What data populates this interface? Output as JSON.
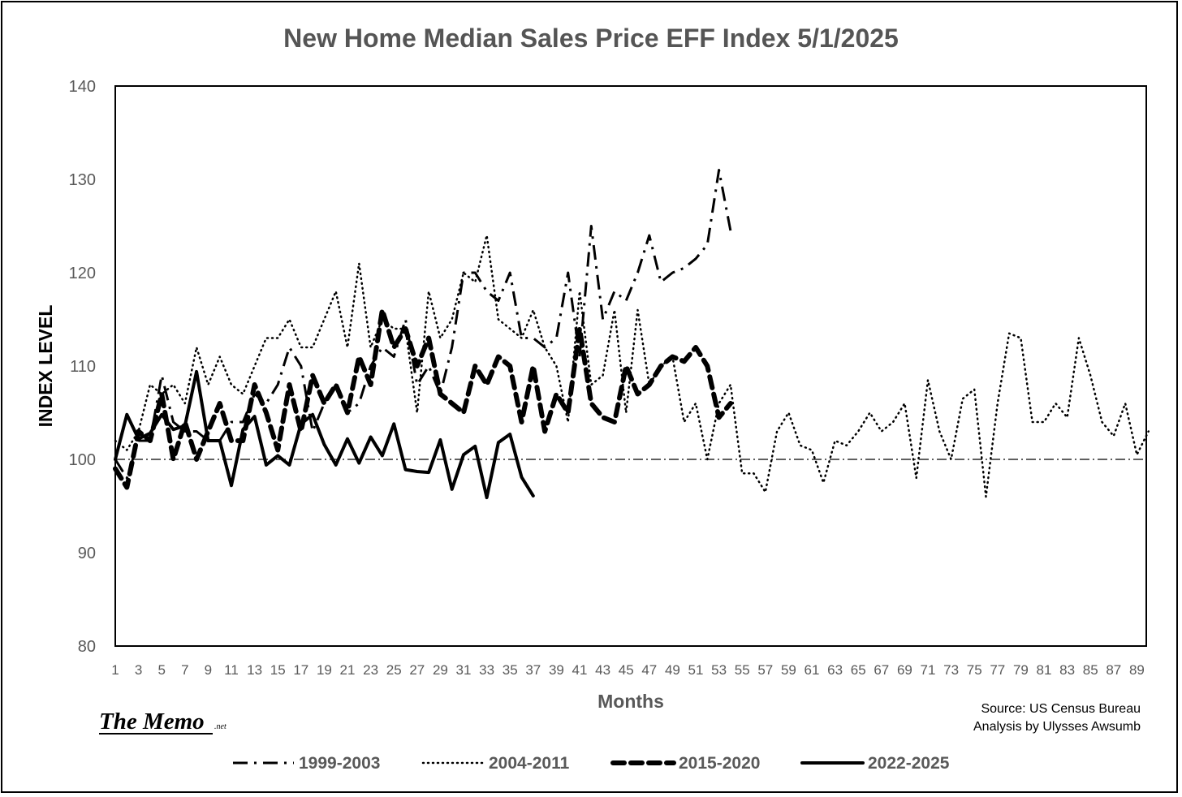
{
  "chart_data": {
    "type": "line",
    "title": "New Home Median Sales Price EFF Index 5/1/2025",
    "xlabel": "Months",
    "ylabel": "INDEX LEVEL",
    "xlim": [
      1,
      90
    ],
    "ylim": [
      80,
      140
    ],
    "y_ticks": [
      80,
      90,
      100,
      110,
      120,
      130,
      140
    ],
    "x_tick_labels": [
      "1",
      "3",
      "5",
      "7",
      "9",
      "11",
      "13",
      "15",
      "17",
      "19",
      "21",
      "23",
      "25",
      "27",
      "29",
      "31",
      "33",
      "35",
      "37",
      "39",
      "41",
      "43",
      "45",
      "47",
      "49",
      "51",
      "53",
      "55",
      "57",
      "59",
      "61",
      "63",
      "65",
      "67",
      "69",
      "71",
      "73",
      "75",
      "77",
      "79",
      "81",
      "83",
      "85",
      "87",
      "89"
    ],
    "grid": false,
    "legend_position": "bottom",
    "reference_line": {
      "y": 100,
      "style": "dash-dot",
      "color": "#000000"
    },
    "series": [
      {
        "name": "1999-2003",
        "style": "dash-dot",
        "color": "#000000",
        "values": [
          100,
          98,
          102,
          102,
          109,
          104,
          103,
          103,
          102,
          102,
          104,
          104,
          107,
          106,
          108,
          112,
          110,
          103,
          106,
          108,
          105,
          106,
          110,
          112,
          111,
          115,
          108,
          110,
          107,
          112,
          120,
          120,
          118,
          117,
          120,
          113,
          113,
          112,
          113,
          120,
          111,
          125,
          115,
          118,
          117,
          120,
          124,
          119,
          120,
          120.5,
          121.5,
          123,
          131,
          124.5
        ]
      },
      {
        "name": "2004-2011",
        "style": "dotted",
        "color": "#000000",
        "values": [
          102,
          101,
          103,
          108,
          107,
          108,
          106,
          112,
          108,
          111,
          108,
          107,
          110,
          113,
          113,
          115,
          112,
          112,
          115,
          118,
          112,
          121,
          112,
          115,
          114,
          114,
          105,
          118,
          113,
          115,
          120,
          119,
          124,
          115,
          114,
          113,
          116,
          112,
          110,
          104,
          118,
          108,
          109,
          116,
          105,
          116,
          108,
          110,
          111,
          104,
          106,
          100,
          106,
          108,
          98.5,
          98.5,
          96.5,
          103,
          105,
          101.5,
          101,
          97.5,
          102,
          101.5,
          103,
          105,
          103,
          104,
          106,
          98,
          108.5,
          103,
          100,
          106.5,
          107.5,
          96,
          106,
          113.5,
          113,
          104,
          104,
          106,
          104.5,
          113,
          109,
          104,
          102.5,
          106,
          100.5,
          103
        ]
      },
      {
        "name": "2015-2020",
        "style": "long-dash",
        "color": "#000000",
        "values": [
          99,
          97,
          103,
          102,
          107,
          100,
          104,
          100,
          103,
          106,
          102,
          102,
          108,
          105,
          101,
          108,
          103,
          109,
          106,
          108,
          105,
          111,
          108,
          116,
          112,
          114,
          110,
          113,
          107,
          106,
          105,
          110,
          108,
          111,
          110,
          104,
          110,
          103,
          107,
          105,
          114,
          106,
          104.5,
          104,
          110,
          107,
          108,
          110,
          111,
          110.5,
          112,
          110,
          104.5,
          106
        ]
      },
      {
        "name": "2022-2025",
        "style": "solid",
        "color": "#000000",
        "values": [
          100,
          104.8,
          102.2,
          102.8,
          104.8,
          103.2,
          103.6,
          109.4,
          102,
          102,
          97.2,
          103.2,
          104.6,
          99.4,
          100.4,
          99.4,
          103.8,
          104.8,
          101.6,
          99.4,
          102.2,
          99.6,
          102.4,
          100.4,
          103.8,
          98.9,
          98.7,
          98.6,
          102.1,
          96.8,
          100.5,
          101.4,
          95.9,
          101.8,
          102.7,
          98.1,
          96.1
        ]
      }
    ]
  },
  "source_lines": [
    "Source: US Census Bureau",
    "Analysis by Ulysses Awsumb"
  ],
  "logo": {
    "main": "The Memo",
    "suffix": ".net"
  }
}
